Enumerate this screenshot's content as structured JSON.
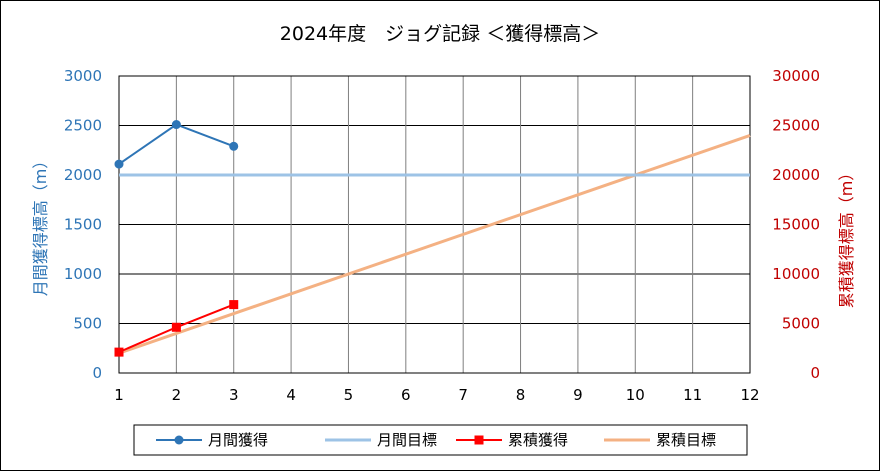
{
  "chart_data": {
    "type": "line",
    "title": "2024年度　ジョグ記録 ＜獲得標高＞",
    "x": [
      1,
      2,
      3,
      4,
      5,
      6,
      7,
      8,
      9,
      10,
      11,
      12
    ],
    "xlim": [
      1,
      12
    ],
    "ylabel_left": "月間獲得標高（m）",
    "ylabel_right": "累積獲得標高（m）",
    "ylim_left": [
      0,
      3000
    ],
    "ylim_right": [
      0,
      30000
    ],
    "yticks_left": [
      0,
      500,
      1000,
      1500,
      2000,
      2500,
      3000
    ],
    "yticks_right": [
      0,
      5000,
      10000,
      15000,
      20000,
      25000,
      30000
    ],
    "grid": true,
    "legend_position": "bottom",
    "series": [
      {
        "name": "月間獲得",
        "axis": "left",
        "color": "#2e75b6",
        "marker": "circle",
        "x": [
          1,
          2,
          3
        ],
        "values": [
          2110,
          2510,
          2290
        ]
      },
      {
        "name": "月間目標",
        "axis": "left",
        "color": "#9dc3e6",
        "marker": "none",
        "x": [
          1,
          12
        ],
        "values": [
          2000,
          2000
        ]
      },
      {
        "name": "累積獲得",
        "axis": "right",
        "color": "#ff0000",
        "marker": "square",
        "x": [
          1,
          2,
          3
        ],
        "values": [
          2110,
          4620,
          6910
        ]
      },
      {
        "name": "累積目標",
        "axis": "right",
        "color": "#f4b183",
        "marker": "none",
        "x": [
          1,
          12
        ],
        "values": [
          2000,
          24000
        ]
      }
    ],
    "colors": {
      "left_axis": "#2e75b6",
      "right_axis": "#c00000"
    }
  }
}
